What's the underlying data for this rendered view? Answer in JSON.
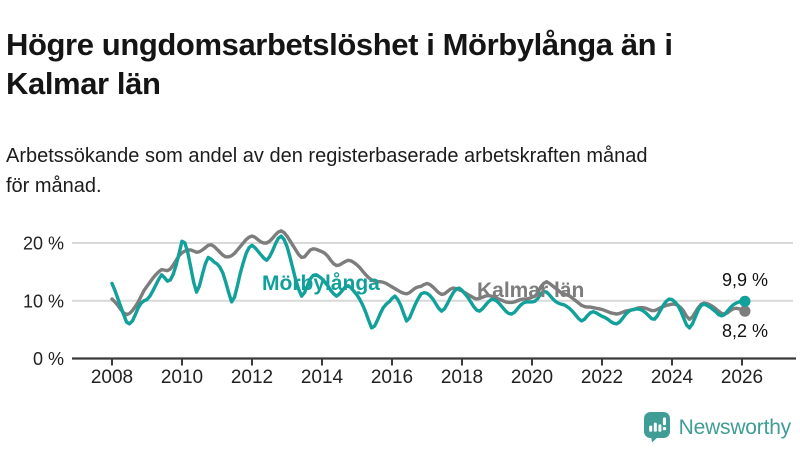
{
  "page": {
    "title_line1": "Högre ungdomsarbetslöshet i Mörbylånga än i",
    "title_line2": "Kalmar län",
    "subtitle_line1": "Arbetssökande som andel av den registerbaserade arbetskraften månad",
    "subtitle_line2": "för månad."
  },
  "branding": {
    "name": "Newsworthy",
    "icon": "bar-chart-speech-bubble-icon",
    "color": "#3f9d96"
  },
  "colors": {
    "series_morbylanga": "#12a19a",
    "series_kalmar": "#7d7d7d",
    "grid": "#d9d9d9",
    "axis": "#3a3a3a",
    "tick_text": "#222222",
    "end_label_text": "#111111"
  },
  "chart_data": {
    "type": "line",
    "x_unit": "month",
    "x_range": [
      "2008-01",
      "2026-02"
    ],
    "x_tick_labels": [
      "2008",
      "2010",
      "2012",
      "2014",
      "2016",
      "2018",
      "2020",
      "2022",
      "2024",
      "2026"
    ],
    "y_ticks": [
      {
        "value": 0,
        "label": "0 %"
      },
      {
        "value": 10,
        "label": "10 %"
      },
      {
        "value": 20,
        "label": "20 %"
      }
    ],
    "ylim": [
      0,
      24
    ],
    "grid": "horizontal",
    "legend": "inline-series-labels",
    "series": [
      {
        "name": "Mörbylånga",
        "color": "#12a19a",
        "end_value": 9.9,
        "end_label": "9,9 %",
        "values": [
          13.0,
          11.8,
          10.4,
          9.0,
          7.6,
          6.3,
          6.0,
          6.5,
          7.6,
          8.8,
          9.6,
          10.0,
          10.2,
          10.8,
          11.7,
          12.7,
          13.7,
          14.5,
          14.0,
          13.4,
          13.6,
          14.6,
          16.2,
          18.2,
          20.3,
          20.0,
          18.3,
          15.8,
          13.2,
          11.5,
          12.6,
          14.6,
          16.4,
          17.5,
          17.2,
          16.7,
          16.4,
          15.8,
          14.8,
          13.2,
          11.4,
          9.8,
          10.6,
          12.6,
          14.8,
          16.6,
          18.2,
          19.2,
          19.6,
          19.2,
          18.6,
          18.0,
          17.4,
          17.0,
          17.6,
          18.6,
          19.8,
          20.8,
          21.2,
          20.6,
          19.4,
          17.6,
          15.6,
          13.6,
          12.0,
          10.8,
          11.4,
          12.6,
          13.8,
          14.4,
          14.5,
          14.2,
          13.8,
          13.2,
          12.6,
          11.8,
          11.2,
          10.8,
          11.2,
          11.8,
          12.4,
          12.6,
          12.2,
          11.6,
          11.0,
          10.2,
          9.2,
          8.0,
          6.6,
          5.3,
          5.6,
          6.6,
          7.8,
          8.8,
          9.4,
          9.8,
          10.4,
          10.8,
          10.2,
          9.2,
          7.8,
          6.5,
          7.0,
          8.2,
          9.4,
          10.4,
          11.2,
          11.4,
          11.3,
          10.9,
          10.3,
          9.5,
          8.7,
          8.2,
          8.6,
          9.5,
          10.5,
          11.4,
          12.0,
          12.2,
          11.8,
          11.2,
          10.6,
          9.8,
          9.0,
          8.4,
          8.2,
          8.6,
          9.2,
          9.8,
          10.2,
          10.2,
          9.9,
          9.4,
          8.8,
          8.2,
          7.8,
          7.7,
          8.0,
          8.6,
          9.2,
          9.6,
          9.8,
          9.8,
          9.8,
          9.9,
          10.4,
          11.2,
          11.6,
          11.5,
          11.0,
          10.4,
          9.9,
          9.6,
          9.4,
          9.3,
          9.0,
          8.6,
          8.1,
          7.5,
          6.9,
          6.5,
          6.8,
          7.4,
          7.9,
          8.1,
          7.9,
          7.6,
          7.3,
          7.1,
          6.8,
          6.4,
          6.1,
          6.0,
          6.3,
          6.9,
          7.6,
          8.1,
          8.4,
          8.5,
          8.6,
          8.5,
          8.3,
          7.9,
          7.4,
          6.9,
          6.8,
          7.4,
          8.3,
          9.2,
          9.9,
          10.3,
          10.2,
          9.8,
          9.2,
          8.2,
          7.0,
          5.8,
          5.3,
          6.0,
          7.2,
          8.4,
          9.2,
          9.4,
          9.2,
          8.9,
          8.5,
          8.1,
          7.6,
          7.4,
          7.6,
          8.2,
          8.8,
          9.3,
          9.6,
          9.8,
          9.9,
          9.9
        ]
      },
      {
        "name": "Kalmar län",
        "color": "#7d7d7d",
        "end_value": 8.2,
        "end_label": "8,2 %",
        "values": [
          10.3,
          9.8,
          9.2,
          8.5,
          7.9,
          7.6,
          7.8,
          8.3,
          9.0,
          9.8,
          10.8,
          11.8,
          12.5,
          13.2,
          13.9,
          14.5,
          15.0,
          15.4,
          15.3,
          15.2,
          15.5,
          16.2,
          17.0,
          17.8,
          18.3,
          18.6,
          18.8,
          18.8,
          18.6,
          18.4,
          18.5,
          18.8,
          19.2,
          19.6,
          19.7,
          19.4,
          18.9,
          18.4,
          17.9,
          17.6,
          17.6,
          17.8,
          18.2,
          18.8,
          19.4,
          20.0,
          20.6,
          21.0,
          21.2,
          21.0,
          20.6,
          20.2,
          20.0,
          20.0,
          20.3,
          20.8,
          21.4,
          21.9,
          22.1,
          21.8,
          21.2,
          20.4,
          19.6,
          18.8,
          18.0,
          17.5,
          17.6,
          18.2,
          18.8,
          19.0,
          18.9,
          18.7,
          18.5,
          18.2,
          17.7,
          17.0,
          16.4,
          16.1,
          16.2,
          16.5,
          16.8,
          17.0,
          16.9,
          16.6,
          16.2,
          15.7,
          15.1,
          14.5,
          14.0,
          13.6,
          13.4,
          13.3,
          13.3,
          13.2,
          13.0,
          12.7,
          12.4,
          12.1,
          11.8,
          11.5,
          11.3,
          11.2,
          11.4,
          11.8,
          12.2,
          12.4,
          12.5,
          12.8,
          13.0,
          12.8,
          12.4,
          11.9,
          11.4,
          11.1,
          11.2,
          11.6,
          12.0,
          12.2,
          12.1,
          11.9,
          11.7,
          11.4,
          11.1,
          10.8,
          10.5,
          10.3,
          10.4,
          10.6,
          10.8,
          10.9,
          10.8,
          10.6,
          10.4,
          10.2,
          10.0,
          9.8,
          9.7,
          9.7,
          9.8,
          10.0,
          10.2,
          10.3,
          10.3,
          10.4,
          10.6,
          10.8,
          11.4,
          12.4,
          13.0,
          13.3,
          13.0,
          12.6,
          12.2,
          11.8,
          11.4,
          11.2,
          11.0,
          10.8,
          10.4,
          10.0,
          9.6,
          9.2,
          9.0,
          8.9,
          8.9,
          8.8,
          8.7,
          8.6,
          8.5,
          8.3,
          8.1,
          7.9,
          7.8,
          7.7,
          7.8,
          8.0,
          8.2,
          8.3,
          8.4,
          8.5,
          8.7,
          8.8,
          8.8,
          8.7,
          8.5,
          8.3,
          8.3,
          8.5,
          8.8,
          9.0,
          9.2,
          9.3,
          9.4,
          9.4,
          9.2,
          8.8,
          8.2,
          7.3,
          6.8,
          7.2,
          8.0,
          8.8,
          9.4,
          9.6,
          9.5,
          9.3,
          9.0,
          8.6,
          8.2,
          7.8,
          7.7,
          7.9,
          8.3,
          8.6,
          8.7,
          8.6,
          8.4,
          8.2
        ]
      }
    ]
  }
}
